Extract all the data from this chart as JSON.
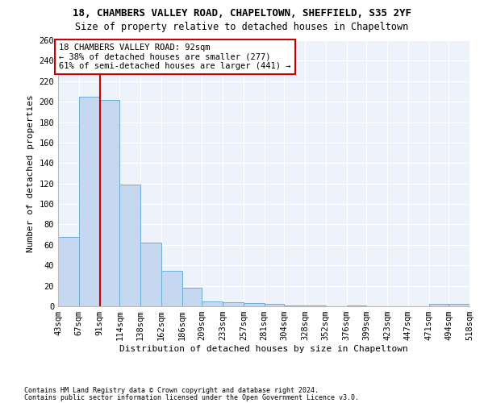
{
  "title1": "18, CHAMBERS VALLEY ROAD, CHAPELTOWN, SHEFFIELD, S35 2YF",
  "title2": "Size of property relative to detached houses in Chapeltown",
  "xlabel": "Distribution of detached houses by size in Chapeltown",
  "ylabel": "Number of detached properties",
  "footer1": "Contains HM Land Registry data © Crown copyright and database right 2024.",
  "footer2": "Contains public sector information licensed under the Open Government Licence v3.0.",
  "bin_edges": [
    43,
    67,
    91,
    114,
    138,
    162,
    186,
    209,
    233,
    257,
    281,
    304,
    328,
    352,
    376,
    399,
    423,
    447,
    471,
    494,
    518
  ],
  "bar_heights": [
    68,
    205,
    202,
    119,
    62,
    35,
    18,
    5,
    4,
    3,
    2,
    1,
    1,
    0,
    1,
    0,
    0,
    0,
    2,
    2
  ],
  "bar_color": "#c5d8f0",
  "bar_edge_color": "#6baed6",
  "vline_x": 91,
  "vline_color": "#cc0000",
  "annotation_text": "18 CHAMBERS VALLEY ROAD: 92sqm\n← 38% of detached houses are smaller (277)\n61% of semi-detached houses are larger (441) →",
  "annotation_box_color": "#cc0000",
  "ylim": [
    0,
    260
  ],
  "yticks": [
    0,
    20,
    40,
    60,
    80,
    100,
    120,
    140,
    160,
    180,
    200,
    220,
    240,
    260
  ],
  "background_color": "#eef2fa",
  "grid_color": "#ffffff",
  "title1_fontsize": 9,
  "title2_fontsize": 8.5,
  "xlabel_fontsize": 8,
  "ylabel_fontsize": 8,
  "tick_fontsize": 7.5,
  "annotation_fontsize": 7.5,
  "footer_fontsize": 6
}
